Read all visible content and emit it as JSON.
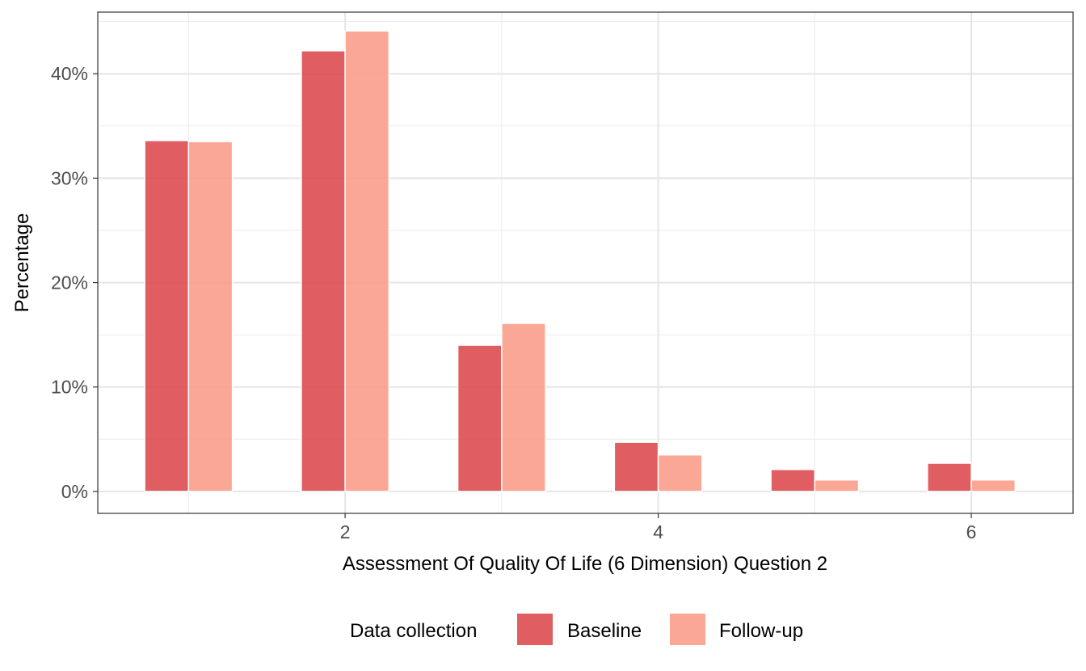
{
  "chart_data": {
    "type": "bar",
    "xlabel": "Assessment Of Quality Of Life (6 Dimension) Question 2",
    "ylabel": "Percentage",
    "x_ticks": [
      2,
      4,
      6
    ],
    "x_tick_labels": [
      "2",
      "4",
      "6"
    ],
    "y_ticks": [
      0,
      10,
      20,
      30,
      40
    ],
    "y_tick_labels": [
      "0%",
      "10%",
      "20%",
      "30%",
      "40%"
    ],
    "xlim": [
      0.42,
      6.65
    ],
    "ylim": [
      -2.1,
      45.9
    ],
    "grid": true,
    "legend": {
      "title": "Data collection",
      "position": "bottom"
    },
    "categories": [
      1,
      2,
      3,
      4,
      5,
      6
    ],
    "series": [
      {
        "name": "Baseline",
        "color": "#dc474c",
        "values": [
          33.6,
          42.2,
          14.0,
          4.7,
          2.1,
          2.7
        ]
      },
      {
        "name": "Follow-up",
        "color": "#f99c86",
        "values": [
          33.5,
          44.1,
          16.1,
          3.5,
          1.1,
          1.1
        ]
      }
    ]
  }
}
